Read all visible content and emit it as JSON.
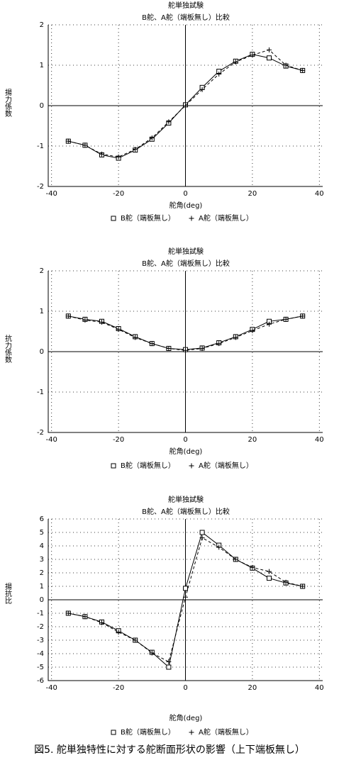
{
  "chart_data": [
    {
      "type": "line",
      "title": "舵単独試験",
      "subtitle": "B舵、A舵（端板無し）比較",
      "x_label": "舵角(deg)",
      "y_label": "揚力係数",
      "x": [
        -35,
        -30,
        -25,
        -20,
        -15,
        -10,
        -5,
        0,
        5,
        10,
        15,
        20,
        25,
        30,
        35
      ],
      "xlim": [
        -41,
        41
      ],
      "xticks": [
        -40,
        -20,
        0,
        20,
        40
      ],
      "ylim": [
        -2,
        2
      ],
      "yticks": [
        -2,
        -1,
        0,
        1,
        2
      ],
      "grid": true,
      "series": [
        {
          "name": "B舵（端板無し）",
          "color": "#000000",
          "values": [
            -0.88,
            -0.98,
            -1.22,
            -1.3,
            -1.1,
            -0.83,
            -0.43,
            0.02,
            0.45,
            0.85,
            1.1,
            1.27,
            1.18,
            0.98,
            0.87
          ]
        },
        {
          "name": "A舵（端板無し）",
          "color": "#000000",
          "values": [
            -0.88,
            -0.98,
            -1.2,
            -1.27,
            -1.08,
            -0.8,
            -0.4,
            0.0,
            0.4,
            0.78,
            1.08,
            1.25,
            1.38,
            1.0,
            0.87
          ]
        }
      ]
    },
    {
      "type": "line",
      "title": "舵単独試験",
      "subtitle": "B舵、A舵（端板無し）比較",
      "x_label": "舵角(deg)",
      "y_label": "抗力係数",
      "x": [
        -35,
        -30,
        -25,
        -20,
        -15,
        -10,
        -5,
        0,
        5,
        10,
        15,
        20,
        25,
        30,
        35
      ],
      "xlim": [
        -41,
        41
      ],
      "xticks": [
        -40,
        -20,
        0,
        20,
        40
      ],
      "ylim": [
        -2,
        2
      ],
      "yticks": [
        -2,
        -1,
        0,
        1,
        2
      ],
      "grid": true,
      "series": [
        {
          "name": "B舵（端板無し）",
          "color": "#000000",
          "values": [
            0.88,
            0.8,
            0.75,
            0.57,
            0.37,
            0.2,
            0.08,
            0.05,
            0.09,
            0.22,
            0.37,
            0.55,
            0.75,
            0.8,
            0.88
          ]
        },
        {
          "name": "A舵（端板無し）",
          "color": "#000000",
          "values": [
            0.88,
            0.78,
            0.73,
            0.55,
            0.35,
            0.2,
            0.08,
            0.03,
            0.08,
            0.2,
            0.35,
            0.52,
            0.68,
            0.8,
            0.88
          ]
        }
      ]
    },
    {
      "type": "line",
      "title": "舵単独試験",
      "subtitle": "B舵、A舵（端板無し）比較",
      "x_label": "舵角(deg)",
      "y_label": "揚抗比",
      "x": [
        -35,
        -30,
        -25,
        -20,
        -15,
        -10,
        -5,
        0,
        5,
        10,
        15,
        20,
        25,
        30,
        35
      ],
      "xlim": [
        -41,
        41
      ],
      "xticks": [
        -40,
        -20,
        0,
        20,
        40
      ],
      "ylim": [
        -6,
        6
      ],
      "yticks": [
        -6,
        -5,
        -4,
        -3,
        -2,
        -1,
        0,
        1,
        2,
        3,
        4,
        5,
        6
      ],
      "grid": true,
      "series": [
        {
          "name": "B舵（端板無し）",
          "color": "#000000",
          "values": [
            -1.0,
            -1.25,
            -1.65,
            -2.3,
            -3.0,
            -3.9,
            -5.0,
            0.85,
            5.0,
            4.05,
            3.0,
            2.35,
            1.6,
            1.25,
            1.0
          ]
        },
        {
          "name": "A舵（端板無し）",
          "color": "#000000",
          "values": [
            -1.0,
            -1.25,
            -1.7,
            -2.4,
            -3.0,
            -3.95,
            -4.6,
            0.2,
            4.6,
            3.9,
            3.0,
            2.4,
            2.1,
            1.3,
            1.0
          ]
        }
      ]
    }
  ],
  "caption": "図5. 舵単独特性に対する舵断面形状の影響（上下端板無し）"
}
